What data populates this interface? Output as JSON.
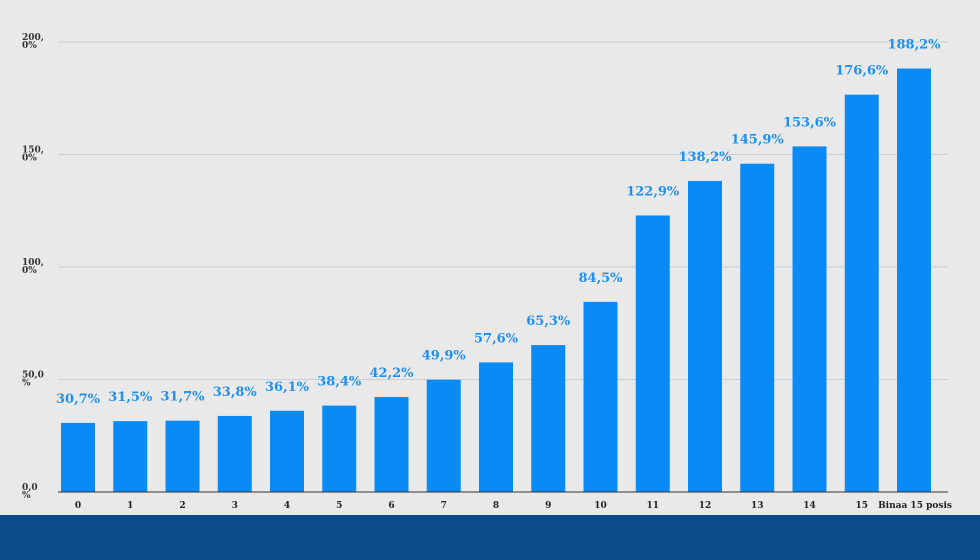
{
  "colors": {
    "bar": "#0a8af5",
    "label": "#1e90ef",
    "grid": "#c9cfd4",
    "axis": "#333333",
    "background": "#e9e9e9",
    "footer": "#0d4a8c"
  },
  "chart_data": {
    "type": "bar",
    "title": "",
    "xlabel": "",
    "ylabel": "",
    "ylim": [
      0,
      200
    ],
    "grid": true,
    "y_ticks": [
      {
        "value": 0,
        "label": [
          "0,0",
          "%"
        ]
      },
      {
        "value": 50,
        "label": [
          "50,0",
          "%"
        ]
      },
      {
        "value": 100,
        "label": [
          "100,",
          "0%"
        ]
      },
      {
        "value": 150,
        "label": [
          "150,",
          "0%"
        ]
      },
      {
        "value": 200,
        "label": [
          "200,",
          "0%"
        ]
      }
    ],
    "categories": [
      "0",
      "1",
      "2",
      "3",
      "4",
      "5",
      "6",
      "7",
      "8",
      "9",
      "10",
      "11",
      "12",
      "13",
      "14",
      "15",
      "Binaa 15 posis"
    ],
    "values": [
      30.7,
      31.5,
      31.7,
      33.8,
      36.1,
      38.4,
      42.2,
      49.9,
      57.6,
      65.3,
      84.5,
      122.9,
      138.2,
      145.9,
      153.6,
      176.6,
      188.2
    ],
    "data_labels": [
      "30,7%",
      "31,5%",
      "31,7%",
      "33,8%",
      "36,1%",
      "38,4%",
      "42,2%",
      "49,9%",
      "57,6%",
      "65,3%",
      "84,5%",
      "122,9%",
      "138,2%",
      "145,9%",
      "153,6%",
      "176,6%",
      "188,2%"
    ]
  }
}
